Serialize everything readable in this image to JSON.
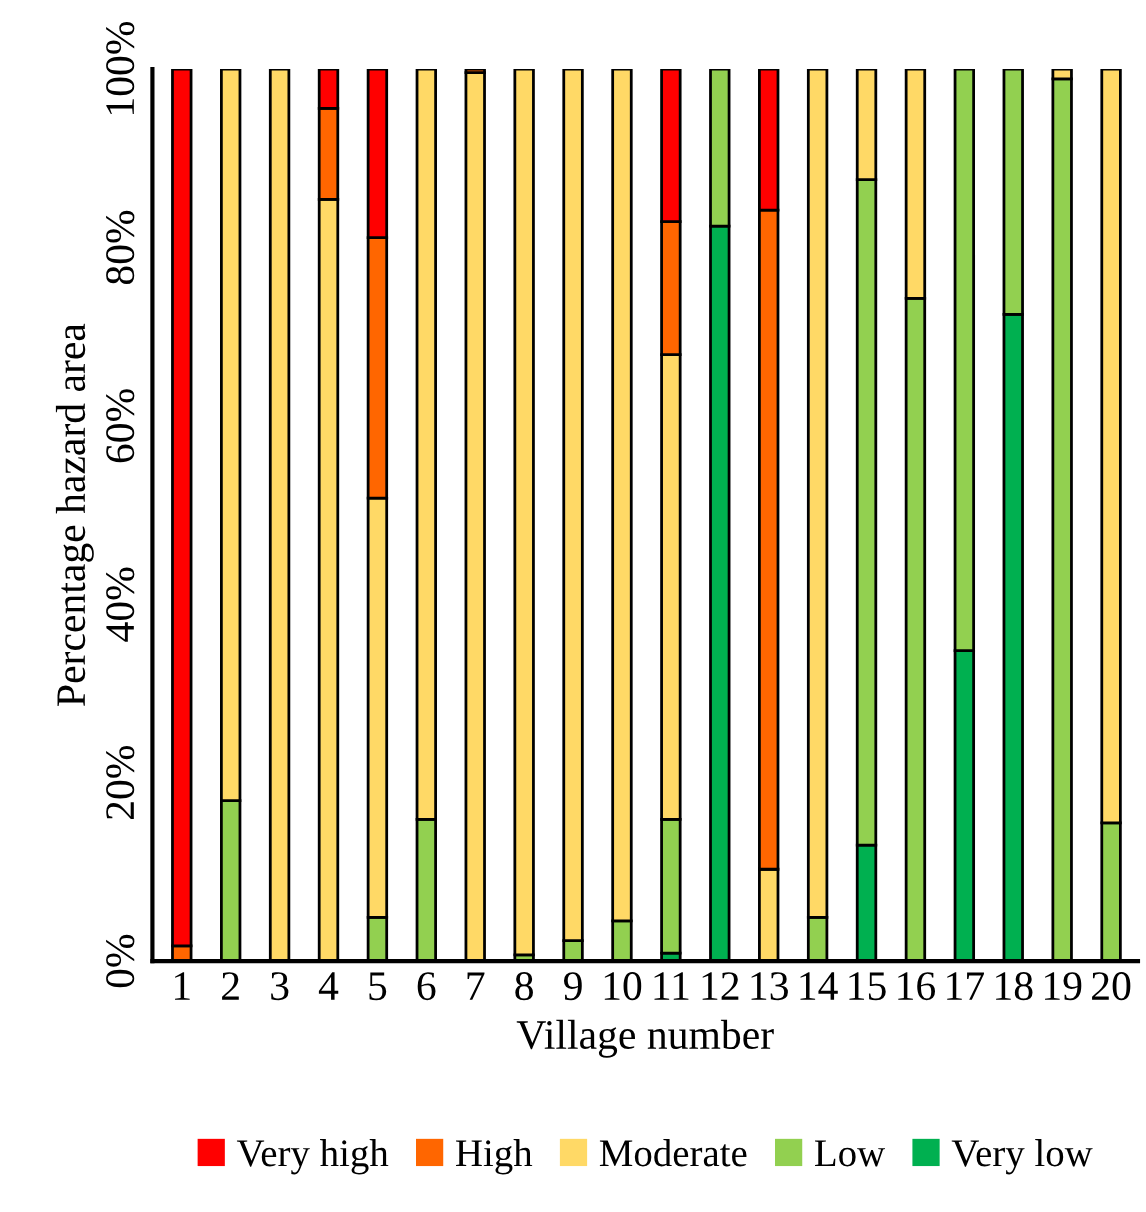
{
  "chart_data": {
    "type": "bar",
    "stacked": true,
    "xlabel": "Village number",
    "ylabel": "Percentage hazard area",
    "categories": [
      "1",
      "2",
      "3",
      "4",
      "5",
      "6",
      "7",
      "8",
      "9",
      "10",
      "11",
      "12",
      "13",
      "14",
      "15",
      "16",
      "17",
      "18",
      "19",
      "20"
    ],
    "ylim": [
      0,
      100
    ],
    "yticks": [
      {
        "value": 0,
        "label": "0%"
      },
      {
        "value": 20,
        "label": "20%"
      },
      {
        "value": 40,
        "label": "40%"
      },
      {
        "value": 60,
        "label": "60%"
      },
      {
        "value": 80,
        "label": "80%"
      },
      {
        "value": 100,
        "label": "100%"
      }
    ],
    "grid": false,
    "legend": "bottom",
    "series": [
      {
        "name": "Very low",
        "color": "#00b050",
        "values": [
          0,
          0,
          0,
          0,
          0,
          0,
          0,
          0,
          0,
          0,
          0.9,
          82.4,
          0,
          0,
          13.0,
          0,
          34.8,
          72.5,
          0,
          0
        ]
      },
      {
        "name": "Low",
        "color": "#92d050",
        "values": [
          0,
          18.0,
          0,
          0,
          4.9,
          15.9,
          0,
          0.7,
          2.3,
          4.5,
          15.0,
          17.6,
          0,
          4.9,
          74.6,
          74.3,
          65.2,
          27.5,
          98.9,
          15.5
        ]
      },
      {
        "name": "Moderate",
        "color": "#ffd966",
        "values": [
          0,
          82.0,
          100,
          85.4,
          47.0,
          84.1,
          99.6,
          99.3,
          97.7,
          95.5,
          52.1,
          0,
          10.3,
          95.1,
          12.4,
          25.7,
          0,
          0,
          1.1,
          84.5
        ]
      },
      {
        "name": "High",
        "color": "#ff6600",
        "values": [
          1.7,
          0,
          0,
          10.2,
          29.2,
          0,
          0.4,
          0,
          0,
          0,
          14.9,
          0,
          73.9,
          0,
          0,
          0,
          0,
          0,
          0,
          0
        ]
      },
      {
        "name": "Very high",
        "color": "#ff0000",
        "values": [
          98.3,
          0,
          0,
          4.4,
          18.9,
          0,
          0,
          0,
          0,
          0,
          17.1,
          0,
          15.8,
          0,
          0,
          0,
          0,
          0,
          0,
          0
        ]
      }
    ]
  }
}
